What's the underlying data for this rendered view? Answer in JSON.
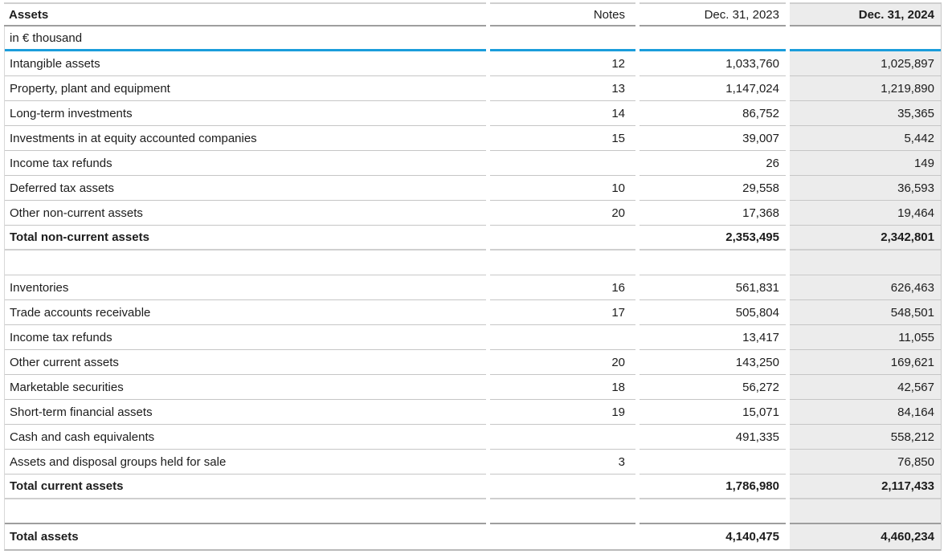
{
  "table": {
    "title": "Assets",
    "unit_label": "in € thousand",
    "col_headers": {
      "notes": "Notes",
      "y2023": "Dec. 31, 2023",
      "y2024": "Dec. 31, 2024"
    },
    "colors": {
      "accent_blue": "#1b9ddb",
      "highlight_column_bg": "#ececec"
    },
    "rows": [
      {
        "type": "data",
        "label": "Intangible assets",
        "notes": "12",
        "y2023": "1,033,760",
        "y2024": "1,025,897"
      },
      {
        "type": "data",
        "label": "Property, plant and equipment",
        "notes": "13",
        "y2023": "1,147,024",
        "y2024": "1,219,890"
      },
      {
        "type": "data",
        "label": "Long-term investments",
        "notes": "14",
        "y2023": "86,752",
        "y2024": "35,365"
      },
      {
        "type": "data",
        "label": "Investments in at equity accounted companies",
        "notes": "15",
        "y2023": "39,007",
        "y2024": "5,442"
      },
      {
        "type": "data",
        "label": "Income tax refunds",
        "notes": "",
        "y2023": "26",
        "y2024": "149"
      },
      {
        "type": "data",
        "label": "Deferred tax assets",
        "notes": "10",
        "y2023": "29,558",
        "y2024": "36,593"
      },
      {
        "type": "data",
        "label": "Other non-current assets",
        "notes": "20",
        "y2023": "17,368",
        "y2024": "19,464"
      },
      {
        "type": "total",
        "label": "Total non-current assets",
        "notes": "",
        "y2023": "2,353,495",
        "y2024": "2,342,801"
      },
      {
        "type": "spacer",
        "label": "",
        "notes": "",
        "y2023": "",
        "y2024": ""
      },
      {
        "type": "data",
        "label": "Inventories",
        "notes": "16",
        "y2023": "561,831",
        "y2024": "626,463"
      },
      {
        "type": "data",
        "label": "Trade accounts receivable",
        "notes": "17",
        "y2023": "505,804",
        "y2024": "548,501"
      },
      {
        "type": "data",
        "label": "Income tax refunds",
        "notes": "",
        "y2023": "13,417",
        "y2024": "11,055"
      },
      {
        "type": "data",
        "label": "Other current assets",
        "notes": "20",
        "y2023": "143,250",
        "y2024": "169,621"
      },
      {
        "type": "data",
        "label": "Marketable securities",
        "notes": "18",
        "y2023": "56,272",
        "y2024": "42,567"
      },
      {
        "type": "data",
        "label": "Short-term financial assets",
        "notes": "19",
        "y2023": "15,071",
        "y2024": "84,164"
      },
      {
        "type": "data",
        "label": "Cash and cash equivalents",
        "notes": "",
        "y2023": "491,335",
        "y2024": "558,212"
      },
      {
        "type": "data",
        "label": "Assets and disposal groups held for sale",
        "notes": "3",
        "y2023": "",
        "y2024": "76,850"
      },
      {
        "type": "total",
        "label": "Total current assets",
        "notes": "",
        "y2023": "1,786,980",
        "y2024": "2,117,433"
      },
      {
        "type": "spacer-dark",
        "label": "",
        "notes": "",
        "y2023": "",
        "y2024": ""
      },
      {
        "type": "total last",
        "label": "Total assets",
        "notes": "",
        "y2023": "4,140,475",
        "y2024": "4,460,234"
      }
    ]
  }
}
